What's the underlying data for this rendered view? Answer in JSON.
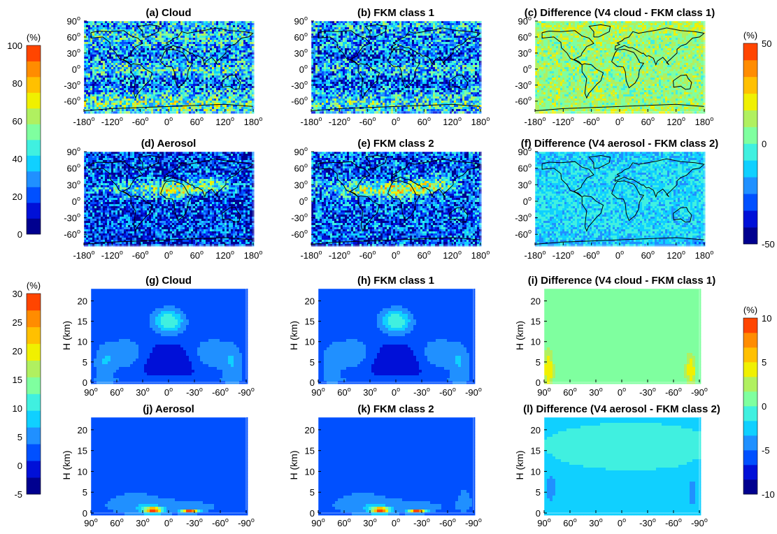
{
  "colors": {
    "jet": [
      "#00008f",
      "#0010d8",
      "#0050ff",
      "#2090ff",
      "#10d0ff",
      "#40f0e0",
      "#7fff9f",
      "#b0f060",
      "#f0f000",
      "#ffc000",
      "#ff8c00",
      "#ff4500"
    ],
    "land_outline": "#000000",
    "axis": "#000000"
  },
  "chart_data": [
    {
      "id": "a",
      "type": "heatmap",
      "title": "(a) Cloud",
      "field": "map",
      "pattern": "cloud_map",
      "xlim": [
        -180,
        180
      ],
      "ylim": [
        -80,
        90
      ],
      "xticks": [
        -180,
        -120,
        -60,
        0,
        60,
        120,
        180
      ],
      "yticks": [
        90,
        60,
        30,
        0,
        -30,
        -60
      ],
      "xticklabels": [
        "-180",
        "-120",
        "-60",
        "0",
        "60",
        "120",
        "180"
      ],
      "yticklabels": [
        "90",
        "60",
        "30",
        "0",
        "-30",
        "-60"
      ],
      "scale": "colorbar_pct_100",
      "ylabel": ""
    },
    {
      "id": "b",
      "type": "heatmap",
      "title": "(b) FKM class 1",
      "field": "map",
      "pattern": "fkm1_map",
      "xlim": [
        -180,
        180
      ],
      "ylim": [
        -80,
        90
      ],
      "xticks": [
        -180,
        -120,
        -60,
        0,
        60,
        120,
        180
      ],
      "yticks": [
        90,
        60,
        30,
        0,
        -30,
        -60
      ],
      "xticklabels": [
        "-180",
        "-120",
        "-60",
        "0",
        "60",
        "120",
        "180"
      ],
      "yticklabels": [
        "90",
        "60",
        "30",
        "0",
        "-30",
        "-60"
      ],
      "scale": "colorbar_pct_100",
      "ylabel": ""
    },
    {
      "id": "c",
      "type": "heatmap",
      "title": "(c) Difference (V4 cloud - FKM class 1)",
      "field": "map",
      "pattern": "diff1_map",
      "xlim": [
        -180,
        180
      ],
      "ylim": [
        -80,
        90
      ],
      "xticks": [
        -180,
        -120,
        -60,
        0,
        60,
        120,
        180
      ],
      "yticks": [
        90,
        60,
        30,
        0,
        -30,
        -60
      ],
      "xticklabels": [
        "-180",
        "-120",
        "-60",
        "0",
        "60",
        "120",
        "180"
      ],
      "yticklabels": [
        "90",
        "60",
        "30",
        "0",
        "-30",
        "-60"
      ],
      "scale": "colorbar_diff_50",
      "ylabel": ""
    },
    {
      "id": "d",
      "type": "heatmap",
      "title": "(d) Aerosol",
      "field": "map",
      "pattern": "aerosol_map",
      "xlim": [
        -180,
        180
      ],
      "ylim": [
        -80,
        90
      ],
      "xticks": [
        -180,
        -120,
        -60,
        0,
        60,
        120,
        180
      ],
      "yticks": [
        90,
        60,
        30,
        0,
        -30,
        -60
      ],
      "xticklabels": [
        "-180",
        "-120",
        "-60",
        "0",
        "60",
        "120",
        "180"
      ],
      "yticklabels": [
        "90",
        "60",
        "30",
        "0",
        "-30",
        "-60"
      ],
      "scale": "colorbar_pct_100",
      "ylabel": ""
    },
    {
      "id": "e",
      "type": "heatmap",
      "title": "(e) FKM class 2",
      "field": "map",
      "pattern": "fkm2_map",
      "xlim": [
        -180,
        180
      ],
      "ylim": [
        -80,
        90
      ],
      "xticks": [
        -180,
        -120,
        -60,
        0,
        60,
        120,
        180
      ],
      "yticks": [
        90,
        60,
        30,
        0,
        -30,
        -60
      ],
      "xticklabels": [
        "-180",
        "-120",
        "-60",
        "0",
        "60",
        "120",
        "180"
      ],
      "yticklabels": [
        "90",
        "60",
        "30",
        "0",
        "-30",
        "-60"
      ],
      "scale": "colorbar_pct_100",
      "ylabel": ""
    },
    {
      "id": "f",
      "type": "heatmap",
      "title": "(f) Difference (V4 aerosol - FKM class 2)",
      "field": "map",
      "pattern": "diff2_map",
      "xlim": [
        -180,
        180
      ],
      "ylim": [
        -80,
        90
      ],
      "xticks": [
        -180,
        -120,
        -60,
        0,
        60,
        120,
        180
      ],
      "yticks": [
        90,
        60,
        30,
        0,
        -30,
        -60
      ],
      "xticklabels": [
        "-180",
        "-120",
        "-60",
        "0",
        "60",
        "120",
        "180"
      ],
      "yticklabels": [
        "90",
        "60",
        "30",
        "0",
        "-30",
        "-60"
      ],
      "scale": "colorbar_diff_50",
      "ylabel": ""
    },
    {
      "id": "g",
      "type": "heatmap",
      "title": "(g) Cloud",
      "field": "profile",
      "pattern": "cloud_prof",
      "xlim": [
        90,
        -90
      ],
      "ylim": [
        0,
        23
      ],
      "xticks": [
        90,
        60,
        30,
        0,
        -30,
        -60,
        -90
      ],
      "yticks": [
        0,
        5,
        10,
        15,
        20
      ],
      "xticklabels": [
        "90",
        "60",
        "30",
        "0",
        "-30",
        "-60",
        "-90"
      ],
      "yticklabels": [
        "0",
        "5",
        "10",
        "15",
        "20"
      ],
      "scale": "colorbar_pct_30",
      "ylabel": "H (km)"
    },
    {
      "id": "h",
      "type": "heatmap",
      "title": "(h) FKM class 1",
      "field": "profile",
      "pattern": "fkm1_prof",
      "xlim": [
        90,
        -90
      ],
      "ylim": [
        0,
        23
      ],
      "xticks": [
        90,
        60,
        30,
        0,
        -30,
        -60,
        -90
      ],
      "yticks": [
        0,
        5,
        10,
        15,
        20
      ],
      "xticklabels": [
        "90",
        "60",
        "30",
        "0",
        "-30",
        "-60",
        "-90"
      ],
      "yticklabels": [
        "0",
        "5",
        "10",
        "15",
        "20"
      ],
      "scale": "colorbar_pct_30",
      "ylabel": "H (km)"
    },
    {
      "id": "i",
      "type": "heatmap",
      "title": "(i) Difference (V4 cloud - FKM class 1)",
      "field": "profile",
      "pattern": "diff1_prof",
      "xlim": [
        90,
        -90
      ],
      "ylim": [
        0,
        23
      ],
      "xticks": [
        90,
        60,
        30,
        0,
        -30,
        -60,
        -90
      ],
      "yticks": [
        0,
        5,
        10,
        15,
        20
      ],
      "xticklabels": [
        "90",
        "60",
        "30",
        "0",
        "-30",
        "-60",
        "-90"
      ],
      "yticklabels": [
        "0",
        "5",
        "10",
        "15",
        "20"
      ],
      "scale": "colorbar_diff_10",
      "ylabel": "H (km)"
    },
    {
      "id": "j",
      "type": "heatmap",
      "title": "(j) Aerosol",
      "field": "profile",
      "pattern": "aerosol_prof",
      "xlim": [
        90,
        -90
      ],
      "ylim": [
        0,
        23
      ],
      "xticks": [
        90,
        60,
        30,
        0,
        -30,
        -60,
        -90
      ],
      "yticks": [
        0,
        5,
        10,
        15,
        20
      ],
      "xticklabels": [
        "90",
        "60",
        "30",
        "0",
        "-30",
        "-60",
        "-90"
      ],
      "yticklabels": [
        "0",
        "5",
        "10",
        "15",
        "20"
      ],
      "scale": "colorbar_pct_30",
      "ylabel": "H (km)"
    },
    {
      "id": "k",
      "type": "heatmap",
      "title": "(k) FKM class 2",
      "field": "profile",
      "pattern": "fkm2_prof",
      "xlim": [
        90,
        -90
      ],
      "ylim": [
        0,
        23
      ],
      "xticks": [
        90,
        60,
        30,
        0,
        -30,
        -60,
        -90
      ],
      "yticks": [
        0,
        5,
        10,
        15,
        20
      ],
      "xticklabels": [
        "90",
        "60",
        "30",
        "0",
        "-30",
        "-60",
        "-90"
      ],
      "yticklabels": [
        "0",
        "5",
        "10",
        "15",
        "20"
      ],
      "scale": "colorbar_pct_30",
      "ylabel": "H (km)"
    },
    {
      "id": "l",
      "type": "heatmap",
      "title": "(l) Difference (V4 aerosol - FKM class 2)",
      "field": "profile",
      "pattern": "diff2_prof",
      "xlim": [
        90,
        -90
      ],
      "ylim": [
        0,
        23
      ],
      "xticks": [
        90,
        60,
        30,
        0,
        -30,
        -60,
        -90
      ],
      "yticks": [
        0,
        5,
        10,
        15,
        20
      ],
      "xticklabels": [
        "90",
        "60",
        "30",
        "0",
        "-30",
        "-60",
        "-90"
      ],
      "yticklabels": [
        "0",
        "5",
        "10",
        "15",
        "20"
      ],
      "scale": "colorbar_diff_10",
      "ylabel": "H (km)"
    }
  ],
  "colorbars": [
    {
      "id": "colorbar_pct_100",
      "unit": "(%)",
      "ticks": [
        "100",
        "80",
        "60",
        "40",
        "20",
        "0"
      ],
      "min": 0,
      "max": 100
    },
    {
      "id": "colorbar_diff_50",
      "unit": "(%)",
      "ticks": [
        "50",
        "",
        "0",
        "",
        "-50"
      ],
      "min": -50,
      "max": 50
    },
    {
      "id": "colorbar_pct_30",
      "unit": "(%)",
      "ticks": [
        "30",
        "25",
        "20",
        "15",
        "10",
        "5",
        "0",
        "-5"
      ],
      "min": -5,
      "max": 30
    },
    {
      "id": "colorbar_diff_10",
      "unit": "(%)",
      "ticks": [
        "10",
        "5",
        "0",
        "-5",
        "-10"
      ],
      "min": -10,
      "max": 10
    }
  ]
}
